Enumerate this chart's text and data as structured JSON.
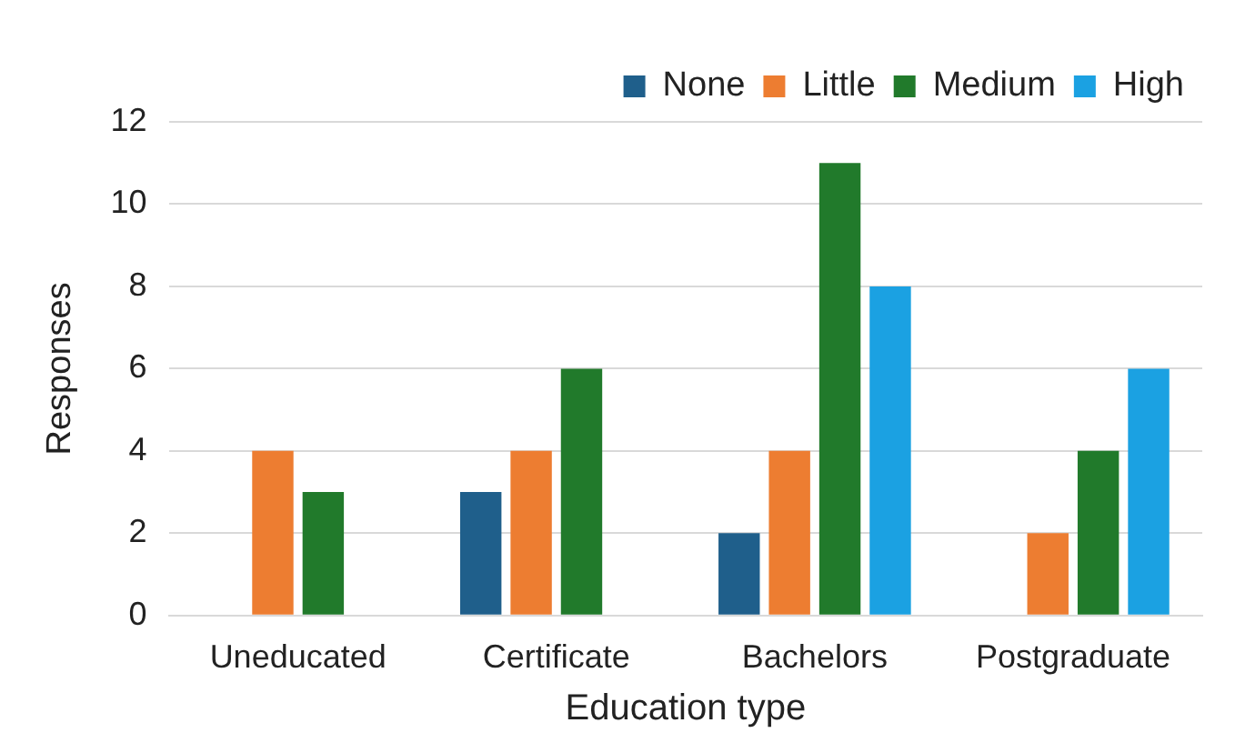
{
  "chart_data": {
    "type": "bar",
    "xlabel": "Education type",
    "ylabel": "Responses",
    "categories": [
      "Uneducated",
      "Certificate",
      "Bachelors",
      "Postgraduate"
    ],
    "series": [
      {
        "name": "None",
        "color": "#1f5f8b",
        "values": [
          0,
          3,
          2,
          0
        ]
      },
      {
        "name": "Little",
        "color": "#ed7d31",
        "values": [
          4,
          4,
          4,
          2
        ]
      },
      {
        "name": "Medium",
        "color": "#217a2b",
        "values": [
          3,
          6,
          11,
          4
        ]
      },
      {
        "name": "High",
        "color": "#1ba1e2",
        "values": [
          0,
          0,
          8,
          6
        ]
      }
    ],
    "ylim": [
      0,
      12
    ],
    "yticks": [
      0,
      2,
      4,
      6,
      8,
      10,
      12
    ],
    "grid": "y",
    "legend": "top right"
  }
}
